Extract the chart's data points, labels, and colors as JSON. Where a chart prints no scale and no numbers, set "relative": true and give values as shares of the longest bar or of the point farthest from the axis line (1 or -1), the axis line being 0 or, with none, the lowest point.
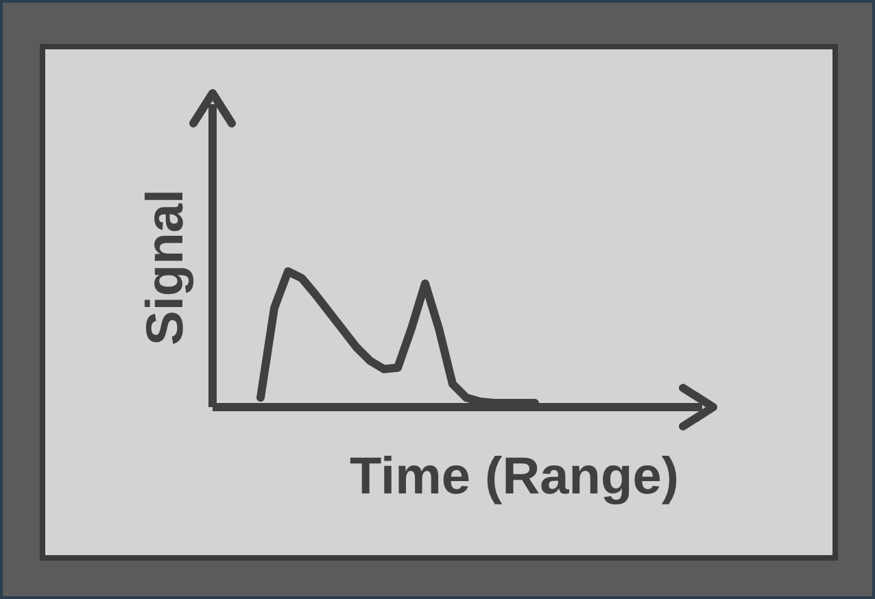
{
  "chart_data": {
    "type": "line",
    "xlabel": "Time (Range)",
    "ylabel": "Signal",
    "relative": true,
    "categories": [
      null,
      null,
      null,
      null,
      null,
      null,
      null,
      null,
      null,
      null,
      null,
      null,
      null,
      null,
      null,
      null,
      null,
      null,
      null,
      null,
      null,
      null,
      null,
      null,
      null,
      null,
      null,
      null,
      null,
      null,
      null,
      null,
      null,
      null
    ],
    "values": [
      0.07,
      0.73,
      1.0,
      0.95,
      0.83,
      0.7,
      0.57,
      0.44,
      0.34,
      0.28,
      0.29,
      0.58,
      0.91,
      0.58,
      0.17,
      0.07,
      0.04,
      0.03,
      0.03,
      0.03,
      0.03,
      null,
      null,
      null,
      null,
      null,
      null,
      null,
      null,
      null,
      null,
      null,
      null,
      null
    ],
    "color": "#404040"
  }
}
